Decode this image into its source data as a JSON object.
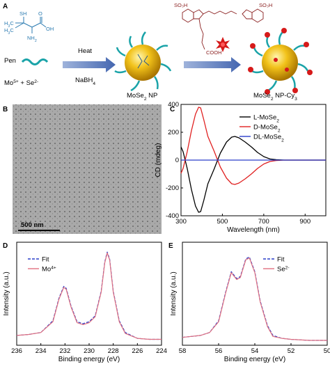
{
  "panel_a": {
    "label": "A",
    "molecule_labels": [
      "SH",
      "H3C",
      "H3C",
      "NH2",
      "OH",
      "O"
    ],
    "pen_label": "Pen",
    "precursor_label": "Mo5+ + Se2-",
    "arrow1_top": "Heat",
    "arrow1_bottom": "NaBH4",
    "np_label": "MoSe2 NP",
    "np_cy3_label": "MoSe2 NP-Cy3"
  },
  "panel_b": {
    "label": "B",
    "scale_bar": "500 nm"
  },
  "panel_c": {
    "label": "C",
    "chart_data": {
      "type": "line",
      "xlabel": "Wavelength (nm)",
      "ylabel": "CD (mdeg)",
      "xlim": [
        300,
        1000
      ],
      "ylim": [
        -400,
        400
      ],
      "xticks": [
        300,
        500,
        700,
        900
      ],
      "yticks": [
        -400,
        -200,
        0,
        200,
        400
      ],
      "legend_placement": "top-right",
      "series": [
        {
          "name": "L-MoSe2",
          "color": "#000000",
          "x": [
            300,
            310,
            330,
            350,
            370,
            385,
            395,
            410,
            430,
            460,
            490,
            520,
            545,
            560,
            580,
            610,
            640,
            670,
            700,
            730,
            760,
            800,
            850,
            900,
            1000
          ],
          "y": [
            95,
            60,
            -60,
            -210,
            -330,
            -375,
            -370,
            -290,
            -170,
            -65,
            50,
            130,
            165,
            170,
            160,
            130,
            95,
            55,
            25,
            8,
            3,
            0,
            0,
            0,
            0
          ]
        },
        {
          "name": "D-MoSe2",
          "color": "#e02020",
          "x": [
            300,
            310,
            330,
            350,
            370,
            385,
            395,
            410,
            430,
            460,
            490,
            520,
            545,
            560,
            580,
            610,
            640,
            670,
            700,
            730,
            760,
            800,
            850,
            900,
            1000
          ],
          "y": [
            -95,
            -60,
            60,
            210,
            330,
            380,
            375,
            290,
            170,
            65,
            -50,
            -130,
            -170,
            -175,
            -165,
            -135,
            -100,
            -60,
            -28,
            -10,
            -3,
            0,
            0,
            0,
            0
          ]
        },
        {
          "name": "DL-MoSe2",
          "color": "#2a3ec9",
          "x": [
            300,
            1000
          ],
          "y": [
            0,
            0
          ]
        }
      ]
    }
  },
  "panel_d": {
    "label": "D",
    "chart_data": {
      "type": "line",
      "xlabel": "Binding energy (eV)",
      "ylabel": "Intensity (a.u.)",
      "xlim": [
        236,
        224
      ],
      "xticks": [
        236,
        234,
        232,
        230,
        228,
        226,
        224
      ],
      "legend_placement": "top-left",
      "series": [
        {
          "name": "Fit",
          "color": "#2a3ec9",
          "x": [
            236,
            235,
            234,
            233,
            232.5,
            232.1,
            231.9,
            231.5,
            231,
            230.5,
            230,
            229.5,
            229,
            228.7,
            228.5,
            228.3,
            228,
            227.5,
            227,
            226,
            225,
            224
          ],
          "y": [
            0.1,
            0.11,
            0.13,
            0.25,
            0.48,
            0.6,
            0.58,
            0.4,
            0.24,
            0.22,
            0.24,
            0.3,
            0.55,
            0.85,
            0.95,
            0.88,
            0.55,
            0.25,
            0.13,
            0.07,
            0.06,
            0.06
          ]
        },
        {
          "name": "Mo4+",
          "color": "#e07080",
          "x": [
            236,
            235,
            234,
            233,
            232.5,
            232.1,
            231.9,
            231.5,
            231,
            230.5,
            230,
            229.5,
            229,
            228.7,
            228.5,
            228.3,
            228,
            227.5,
            227,
            226,
            225,
            224
          ],
          "y": [
            0.1,
            0.11,
            0.13,
            0.24,
            0.47,
            0.59,
            0.57,
            0.39,
            0.23,
            0.21,
            0.23,
            0.29,
            0.54,
            0.84,
            0.94,
            0.87,
            0.54,
            0.24,
            0.12,
            0.07,
            0.06,
            0.06
          ]
        }
      ]
    }
  },
  "panel_e": {
    "label": "E",
    "chart_data": {
      "type": "line",
      "xlabel": "Binding energy (eV)",
      "ylabel": "Intensity (a.u.)",
      "xlim": [
        58,
        50
      ],
      "xticks": [
        58,
        56,
        54,
        52,
        50
      ],
      "legend_placement": "top-right",
      "series": [
        {
          "name": "Fit",
          "color": "#2a3ec9",
          "x": [
            58,
            57,
            56.5,
            56,
            55.6,
            55.3,
            55.0,
            54.8,
            54.5,
            54.3,
            54.0,
            53.7,
            53.3,
            53,
            52.5,
            52,
            51,
            50
          ],
          "y": [
            0.08,
            0.1,
            0.13,
            0.25,
            0.55,
            0.75,
            0.68,
            0.7,
            0.88,
            0.9,
            0.75,
            0.45,
            0.2,
            0.1,
            0.07,
            0.06,
            0.05,
            0.05
          ]
        },
        {
          "name": "Se2-",
          "color": "#e07080",
          "x": [
            58,
            57,
            56.5,
            56,
            55.6,
            55.3,
            55.0,
            54.8,
            54.5,
            54.3,
            54.0,
            53.7,
            53.3,
            53,
            52.5,
            52,
            51,
            50
          ],
          "y": [
            0.08,
            0.1,
            0.13,
            0.24,
            0.54,
            0.74,
            0.67,
            0.69,
            0.87,
            0.89,
            0.74,
            0.44,
            0.19,
            0.09,
            0.07,
            0.06,
            0.05,
            0.05
          ]
        }
      ]
    }
  }
}
